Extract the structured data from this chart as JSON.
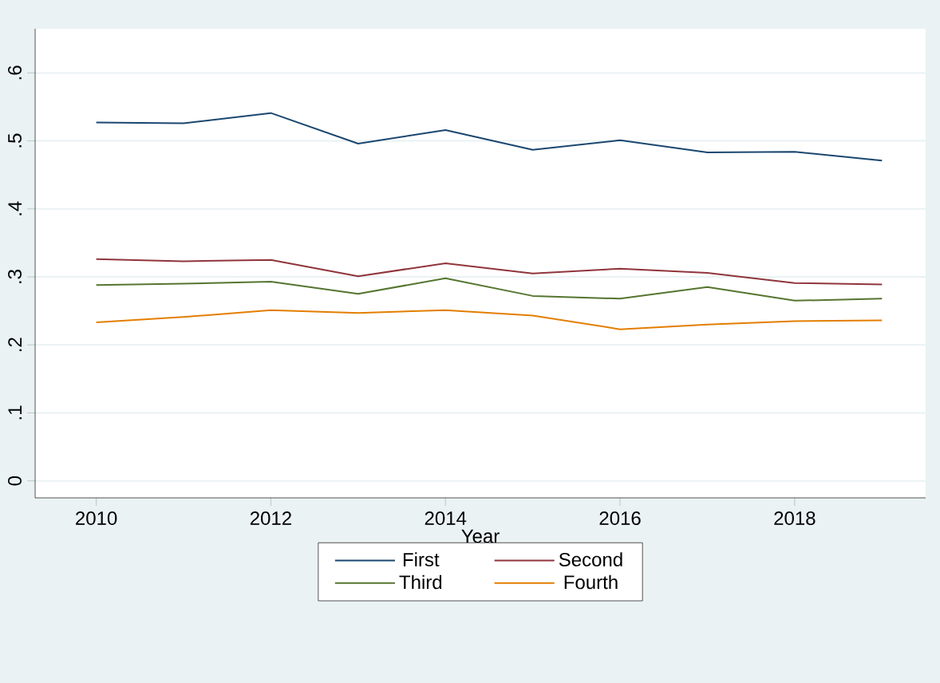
{
  "chart_data": {
    "type": "line",
    "xlabel": "Year",
    "x": [
      2010,
      2011,
      2012,
      2013,
      2014,
      2015,
      2016,
      2017,
      2018,
      2019
    ],
    "series": [
      {
        "name": "First",
        "color": "#1a476f",
        "values": [
          0.527,
          0.526,
          0.541,
          0.496,
          0.516,
          0.487,
          0.501,
          0.483,
          0.484,
          0.471
        ]
      },
      {
        "name": "Second",
        "color": "#90353b",
        "values": [
          0.326,
          0.323,
          0.325,
          0.301,
          0.32,
          0.305,
          0.312,
          0.306,
          0.291,
          0.289
        ]
      },
      {
        "name": "Third",
        "color": "#55752f",
        "values": [
          0.288,
          0.29,
          0.293,
          0.275,
          0.298,
          0.272,
          0.268,
          0.285,
          0.265,
          0.268
        ]
      },
      {
        "name": "Fourth",
        "color": "#e37e00",
        "values": [
          0.233,
          0.241,
          0.251,
          0.247,
          0.251,
          0.243,
          0.223,
          0.23,
          0.235,
          0.236
        ]
      }
    ],
    "xlim": [
      2009.3,
      2019.5
    ],
    "ylim": [
      -0.025,
      0.665
    ],
    "xticks": [
      2010,
      2012,
      2014,
      2016,
      2018
    ],
    "yticks": [
      {
        "value": 0,
        "label": "0"
      },
      {
        "value": 0.1,
        "label": ".1"
      },
      {
        "value": 0.2,
        "label": ".2"
      },
      {
        "value": 0.3,
        "label": ".3"
      },
      {
        "value": 0.4,
        "label": ".4"
      },
      {
        "value": 0.5,
        "label": ".5"
      },
      {
        "value": 0.6,
        "label": ".6"
      }
    ],
    "grid": "y",
    "legend": "bottom",
    "marker": "none",
    "line_style": "solid"
  }
}
